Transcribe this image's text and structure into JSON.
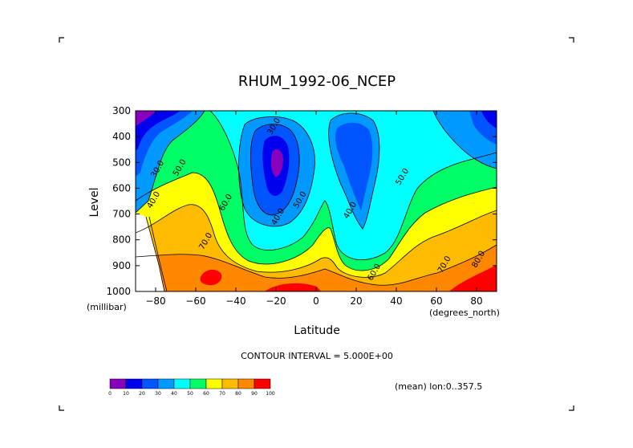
{
  "chart_data": {
    "type": "contour",
    "title": "RHUM_1992-06_NCEP",
    "xlabel": "Latitude",
    "x_units": "(degrees_north)",
    "ylabel": "Level",
    "y_units": "(millibar)",
    "xlim": [
      -90,
      90
    ],
    "ylim": [
      1000,
      300
    ],
    "x_ticks": [
      -80,
      -60,
      -40,
      -20,
      0,
      20,
      40,
      60,
      80
    ],
    "y_ticks": [
      300,
      400,
      500,
      600,
      700,
      800,
      900,
      1000
    ],
    "contour_interval_text": "CONTOUR INTERVAL = 5.000E+00",
    "averaging_note": "(mean) lon:0..357.5",
    "contour_labels": [
      {
        "text": "30.0",
        "x": -20,
        "y": 365
      },
      {
        "text": "30.0",
        "x": -78,
        "y": 530
      },
      {
        "text": "50.0",
        "x": -67,
        "y": 525
      },
      {
        "text": "40.0",
        "x": -80,
        "y": 650
      },
      {
        "text": "60.0",
        "x": -44,
        "y": 660
      },
      {
        "text": "70.0",
        "x": -54,
        "y": 810
      },
      {
        "text": "40.0",
        "x": -18,
        "y": 715
      },
      {
        "text": "50.0",
        "x": -7,
        "y": 650
      },
      {
        "text": "40.0",
        "x": 18,
        "y": 690
      },
      {
        "text": "50.0",
        "x": 44,
        "y": 560
      },
      {
        "text": "60.0",
        "x": 30,
        "y": 930
      },
      {
        "text": "70.0",
        "x": 65,
        "y": 900
      },
      {
        "text": "80.0",
        "x": 82,
        "y": 880
      }
    ],
    "colorbar": {
      "labels": [
        "0",
        "10",
        "20",
        "30",
        "40",
        "50",
        "60",
        "70",
        "80",
        "90",
        "100"
      ],
      "colors": [
        "#8800bb",
        "#0000ee",
        "#0055ff",
        "#0099ff",
        "#00ffff",
        "#00ff66",
        "#ffff00",
        "#ffbb00",
        "#ff8800",
        "#ff0000"
      ]
    }
  }
}
